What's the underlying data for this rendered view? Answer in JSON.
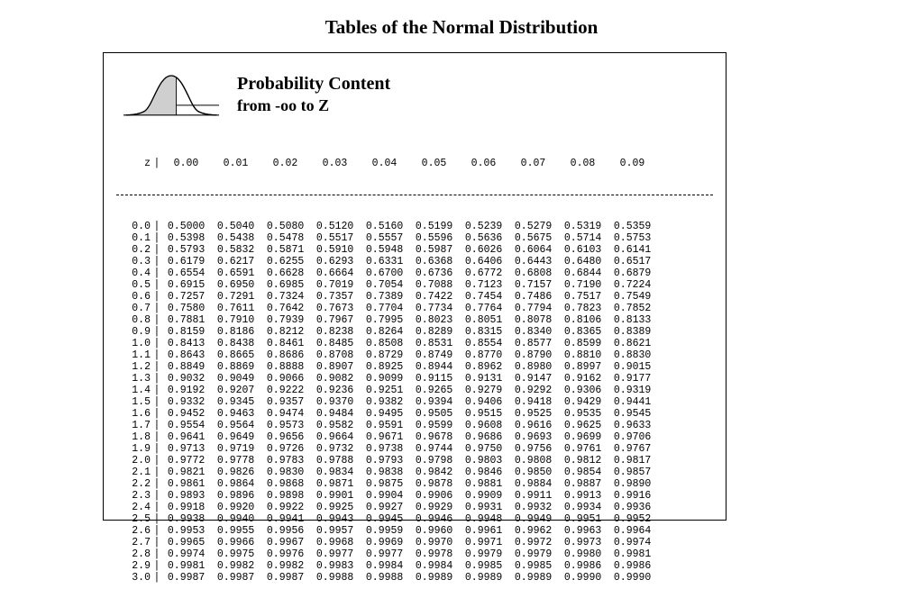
{
  "title": "Tables of the Normal Distribution",
  "subtitle_line1": "Probability Content",
  "subtitle_line2": "from  -oo to Z",
  "curve": {
    "stroke": "#000000",
    "fill": "#cfcfcf",
    "background": "#ffffff",
    "line_width": 1.2
  },
  "table": {
    "type": "table",
    "font_family": "Courier New",
    "font_size_pt": 9,
    "z_label": "z",
    "header_sep": "|",
    "row_sep": "|",
    "column_headers": [
      "0.00",
      "0.01",
      "0.02",
      "0.03",
      "0.04",
      "0.05",
      "0.06",
      "0.07",
      "0.08",
      "0.09"
    ],
    "row_headers": [
      "0.0",
      "0.1",
      "0.2",
      "0.3",
      "0.4",
      "0.5",
      "0.6",
      "0.7",
      "0.8",
      "0.9",
      "1.0",
      "1.1",
      "1.2",
      "1.3",
      "1.4",
      "1.5",
      "1.6",
      "1.7",
      "1.8",
      "1.9",
      "2.0",
      "2.1",
      "2.2",
      "2.3",
      "2.4",
      "2.5",
      "2.6",
      "2.7",
      "2.8",
      "2.9",
      "3.0"
    ],
    "rows": [
      [
        "0.5000",
        "0.5040",
        "0.5080",
        "0.5120",
        "0.5160",
        "0.5199",
        "0.5239",
        "0.5279",
        "0.5319",
        "0.5359"
      ],
      [
        "0.5398",
        "0.5438",
        "0.5478",
        "0.5517",
        "0.5557",
        "0.5596",
        "0.5636",
        "0.5675",
        "0.5714",
        "0.5753"
      ],
      [
        "0.5793",
        "0.5832",
        "0.5871",
        "0.5910",
        "0.5948",
        "0.5987",
        "0.6026",
        "0.6064",
        "0.6103",
        "0.6141"
      ],
      [
        "0.6179",
        "0.6217",
        "0.6255",
        "0.6293",
        "0.6331",
        "0.6368",
        "0.6406",
        "0.6443",
        "0.6480",
        "0.6517"
      ],
      [
        "0.6554",
        "0.6591",
        "0.6628",
        "0.6664",
        "0.6700",
        "0.6736",
        "0.6772",
        "0.6808",
        "0.6844",
        "0.6879"
      ],
      [
        "0.6915",
        "0.6950",
        "0.6985",
        "0.7019",
        "0.7054",
        "0.7088",
        "0.7123",
        "0.7157",
        "0.7190",
        "0.7224"
      ],
      [
        "0.7257",
        "0.7291",
        "0.7324",
        "0.7357",
        "0.7389",
        "0.7422",
        "0.7454",
        "0.7486",
        "0.7517",
        "0.7549"
      ],
      [
        "0.7580",
        "0.7611",
        "0.7642",
        "0.7673",
        "0.7704",
        "0.7734",
        "0.7764",
        "0.7794",
        "0.7823",
        "0.7852"
      ],
      [
        "0.7881",
        "0.7910",
        "0.7939",
        "0.7967",
        "0.7995",
        "0.8023",
        "0.8051",
        "0.8078",
        "0.8106",
        "0.8133"
      ],
      [
        "0.8159",
        "0.8186",
        "0.8212",
        "0.8238",
        "0.8264",
        "0.8289",
        "0.8315",
        "0.8340",
        "0.8365",
        "0.8389"
      ],
      [
        "0.8413",
        "0.8438",
        "0.8461",
        "0.8485",
        "0.8508",
        "0.8531",
        "0.8554",
        "0.8577",
        "0.8599",
        "0.8621"
      ],
      [
        "0.8643",
        "0.8665",
        "0.8686",
        "0.8708",
        "0.8729",
        "0.8749",
        "0.8770",
        "0.8790",
        "0.8810",
        "0.8830"
      ],
      [
        "0.8849",
        "0.8869",
        "0.8888",
        "0.8907",
        "0.8925",
        "0.8944",
        "0.8962",
        "0.8980",
        "0.8997",
        "0.9015"
      ],
      [
        "0.9032",
        "0.9049",
        "0.9066",
        "0.9082",
        "0.9099",
        "0.9115",
        "0.9131",
        "0.9147",
        "0.9162",
        "0.9177"
      ],
      [
        "0.9192",
        "0.9207",
        "0.9222",
        "0.9236",
        "0.9251",
        "0.9265",
        "0.9279",
        "0.9292",
        "0.9306",
        "0.9319"
      ],
      [
        "0.9332",
        "0.9345",
        "0.9357",
        "0.9370",
        "0.9382",
        "0.9394",
        "0.9406",
        "0.9418",
        "0.9429",
        "0.9441"
      ],
      [
        "0.9452",
        "0.9463",
        "0.9474",
        "0.9484",
        "0.9495",
        "0.9505",
        "0.9515",
        "0.9525",
        "0.9535",
        "0.9545"
      ],
      [
        "0.9554",
        "0.9564",
        "0.9573",
        "0.9582",
        "0.9591",
        "0.9599",
        "0.9608",
        "0.9616",
        "0.9625",
        "0.9633"
      ],
      [
        "0.9641",
        "0.9649",
        "0.9656",
        "0.9664",
        "0.9671",
        "0.9678",
        "0.9686",
        "0.9693",
        "0.9699",
        "0.9706"
      ],
      [
        "0.9713",
        "0.9719",
        "0.9726",
        "0.9732",
        "0.9738",
        "0.9744",
        "0.9750",
        "0.9756",
        "0.9761",
        "0.9767"
      ],
      [
        "0.9772",
        "0.9778",
        "0.9783",
        "0.9788",
        "0.9793",
        "0.9798",
        "0.9803",
        "0.9808",
        "0.9812",
        "0.9817"
      ],
      [
        "0.9821",
        "0.9826",
        "0.9830",
        "0.9834",
        "0.9838",
        "0.9842",
        "0.9846",
        "0.9850",
        "0.9854",
        "0.9857"
      ],
      [
        "0.9861",
        "0.9864",
        "0.9868",
        "0.9871",
        "0.9875",
        "0.9878",
        "0.9881",
        "0.9884",
        "0.9887",
        "0.9890"
      ],
      [
        "0.9893",
        "0.9896",
        "0.9898",
        "0.9901",
        "0.9904",
        "0.9906",
        "0.9909",
        "0.9911",
        "0.9913",
        "0.9916"
      ],
      [
        "0.9918",
        "0.9920",
        "0.9922",
        "0.9925",
        "0.9927",
        "0.9929",
        "0.9931",
        "0.9932",
        "0.9934",
        "0.9936"
      ],
      [
        "0.9938",
        "0.9940",
        "0.9941",
        "0.9943",
        "0.9945",
        "0.9946",
        "0.9948",
        "0.9949",
        "0.9951",
        "0.9952"
      ],
      [
        "0.9953",
        "0.9955",
        "0.9956",
        "0.9957",
        "0.9959",
        "0.9960",
        "0.9961",
        "0.9962",
        "0.9963",
        "0.9964"
      ],
      [
        "0.9965",
        "0.9966",
        "0.9967",
        "0.9968",
        "0.9969",
        "0.9970",
        "0.9971",
        "0.9972",
        "0.9973",
        "0.9974"
      ],
      [
        "0.9974",
        "0.9975",
        "0.9976",
        "0.9977",
        "0.9977",
        "0.9978",
        "0.9979",
        "0.9979",
        "0.9980",
        "0.9981"
      ],
      [
        "0.9981",
        "0.9982",
        "0.9982",
        "0.9983",
        "0.9984",
        "0.9984",
        "0.9985",
        "0.9985",
        "0.9986",
        "0.9986"
      ],
      [
        "0.9987",
        "0.9987",
        "0.9987",
        "0.9988",
        "0.9988",
        "0.9989",
        "0.9989",
        "0.9989",
        "0.9990",
        "0.9990"
      ]
    ]
  }
}
